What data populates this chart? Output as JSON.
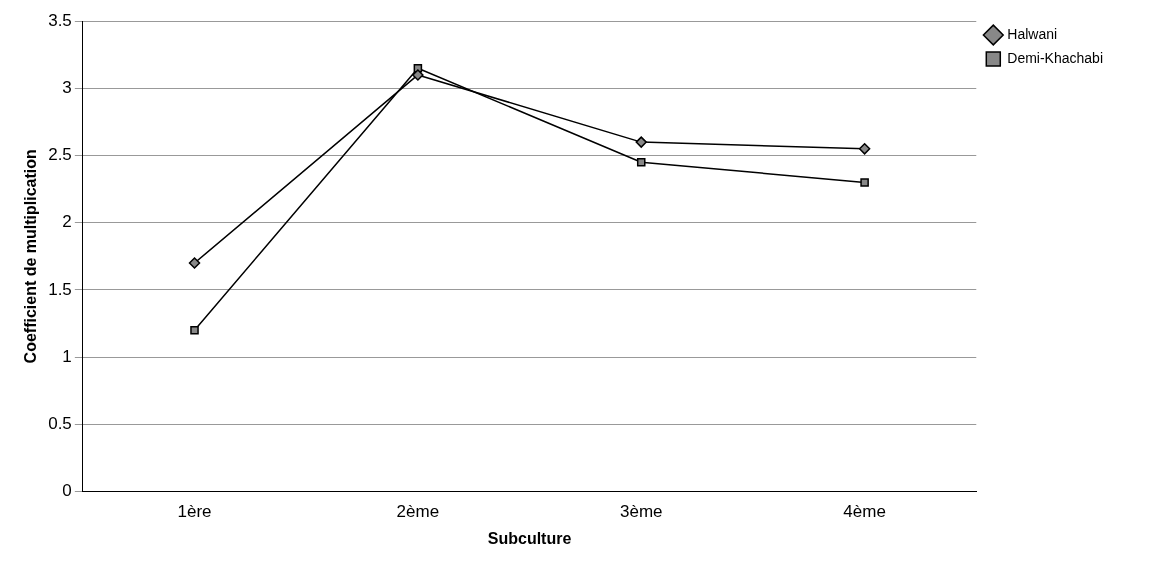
{
  "chart_data": {
    "type": "line",
    "xlabel": "Subculture",
    "ylabel": "Coefficient de multiplication",
    "categories": [
      "1ère",
      "2ème",
      "3ème",
      "4ème"
    ],
    "series": [
      {
        "name": "Halwani",
        "color": "#000000",
        "values": [
          1.7,
          3.1,
          2.6,
          2.55
        ],
        "marker": "diamond"
      },
      {
        "name": "Demi-Khachabi",
        "color": "#000000",
        "values": [
          1.2,
          3.15,
          2.45,
          2.3
        ],
        "marker": "square"
      }
    ],
    "ylim": [
      0,
      3.5
    ],
    "yticks": [
      0,
      0.5,
      1,
      1.5,
      2,
      2.5,
      3,
      3.5
    ],
    "grid": "y",
    "legend": "top right"
  }
}
